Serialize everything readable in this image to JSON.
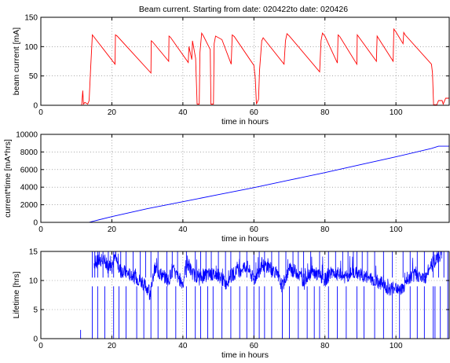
{
  "title": "Beam current. Starting from date: 020422to date: 020426",
  "colors": {
    "current": "#ff0000",
    "integrated": "#0000ff",
    "lifetime": "#0000ff"
  },
  "chart_data": [
    {
      "type": "line",
      "xlabel": "time in hours",
      "ylabel": "beam current [mA]",
      "xlim": [
        0,
        115
      ],
      "ylim": [
        0,
        150
      ],
      "xticks": [
        0,
        20,
        40,
        60,
        80,
        100
      ],
      "yticks": [
        0,
        50,
        100,
        150
      ],
      "grid": true,
      "series": [
        {
          "x": [
            5,
            11.5,
            11.8,
            12.0,
            12.4,
            13.2,
            13.6,
            14.0,
            14.5,
            20.9,
            21.0,
            21.5,
            31,
            31.1,
            31.5,
            36,
            36.1,
            36.5,
            41.5,
            41.7,
            42.5,
            42.7,
            43.6,
            44.0,
            44.6,
            44.8,
            45.3,
            45.8,
            47.7,
            47.9,
            48.6,
            48.8,
            49.2,
            51,
            53.6,
            53.9,
            54.5,
            60,
            60.4,
            60.7,
            61.3,
            61.6,
            62.2,
            62.6,
            63,
            68.5,
            68.9,
            69.3,
            70,
            78.5,
            78.9,
            79.3,
            80,
            83.5,
            83.7,
            84.2,
            89,
            89.1,
            89.6,
            94.5,
            94.7,
            95.1,
            99.2,
            99.4,
            99.9,
            102,
            102.2,
            102.6,
            110,
            110.3,
            110.6,
            111.5,
            112,
            113,
            113.3,
            114,
            114.4,
            115
          ],
          "y": [
            0,
            0,
            25,
            2,
            5,
            2,
            8,
            60,
            120,
            70,
            120,
            118,
            55,
            110,
            108,
            75,
            118,
            116,
            73,
            100,
            78,
            110,
            80,
            2,
            2,
            90,
            123,
            118,
            95,
            2,
            2,
            105,
            118,
            112,
            70,
            120,
            117,
            68,
            45,
            2,
            10,
            60,
            110,
            115,
            112,
            70,
            110,
            122,
            118,
            57,
            110,
            123,
            118,
            72,
            120,
            117,
            70,
            120,
            116,
            75,
            118,
            114,
            75,
            130,
            126,
            105,
            124,
            120,
            70,
            55,
            1,
            1,
            8,
            8,
            2,
            12,
            12,
            12
          ]
        }
      ]
    },
    {
      "type": "line",
      "xlabel": "time in hours",
      "ylabel": "current*time [mA*hrs]",
      "xlim": [
        0,
        115
      ],
      "ylim": [
        0,
        10000
      ],
      "xticks": [
        0,
        20,
        40,
        60,
        80,
        100
      ],
      "yticks": [
        0,
        2000,
        4000,
        6000,
        8000,
        10000
      ],
      "grid": true,
      "series": [
        {
          "x": [
            0,
            13.5,
            20,
            30,
            40,
            50,
            60,
            70,
            80,
            90,
            100,
            110,
            112,
            115
          ],
          "y": [
            0,
            0,
            650,
            1550,
            2350,
            3150,
            3950,
            4800,
            5650,
            6550,
            7450,
            8400,
            8650,
            8650
          ]
        }
      ]
    },
    {
      "type": "line",
      "xlabel": "time in hours",
      "ylabel": "Lifetime [hrs]",
      "xlim": [
        0,
        115
      ],
      "ylim": [
        0,
        15
      ],
      "xticks": [
        0,
        20,
        40,
        60,
        80,
        100
      ],
      "yticks": [
        0,
        5,
        10,
        15
      ],
      "grid": true,
      "series": [
        {
          "x": [
            15,
            17,
            20,
            21,
            22,
            25,
            28,
            31,
            32,
            34,
            36,
            37,
            38,
            40,
            41,
            43,
            45,
            47,
            50,
            52,
            54,
            56,
            58,
            60,
            62,
            64,
            66,
            68,
            70,
            72,
            74,
            76,
            78,
            80,
            82,
            84,
            86,
            88,
            90,
            92,
            94,
            96,
            98,
            100,
            102,
            104,
            106,
            108,
            110,
            112,
            113
          ],
          "y": [
            13,
            13.5,
            12.5,
            14,
            12,
            11,
            10,
            8,
            12,
            11,
            10,
            12,
            11,
            9.5,
            13,
            11,
            10.5,
            11,
            11,
            9.5,
            11,
            12,
            12.5,
            10,
            12.5,
            12.5,
            11.5,
            9,
            12,
            11.5,
            10,
            11.5,
            11,
            10,
            11.5,
            11,
            10.5,
            11.5,
            11,
            10.5,
            10,
            9.5,
            8.5,
            9,
            8.5,
            10.5,
            11,
            10,
            13,
            14,
            15
          ]
        }
      ],
      "dropouts_x": [
        14.5,
        16,
        18,
        20.5,
        22,
        24,
        27,
        29,
        31,
        33,
        35.5,
        38,
        41,
        43.5,
        45,
        47,
        48.5,
        51,
        53.5,
        56,
        58,
        60,
        61.5,
        63,
        65,
        68,
        70,
        72.5,
        75,
        77,
        78.5,
        81,
        83.5,
        86,
        89,
        91,
        94,
        96.5,
        99,
        101,
        104,
        106,
        108,
        110.5,
        111,
        112.5
      ],
      "vspike_x": [
        14.5,
        15.2,
        16,
        17.5,
        19,
        20.5,
        22.5,
        24,
        26,
        28,
        29.5,
        31,
        33,
        35.5,
        37,
        38.5,
        41,
        43.5,
        45,
        46.5,
        48,
        50,
        52,
        53.5,
        56,
        58,
        60,
        61.5,
        63,
        65,
        67,
        69,
        71,
        72.5,
        74,
        76,
        78.5,
        81,
        83,
        85,
        86.5,
        88,
        89,
        90.5,
        92,
        94,
        96.5,
        99,
        102,
        104,
        106,
        108,
        110.5,
        112,
        113.5
      ]
    }
  ]
}
